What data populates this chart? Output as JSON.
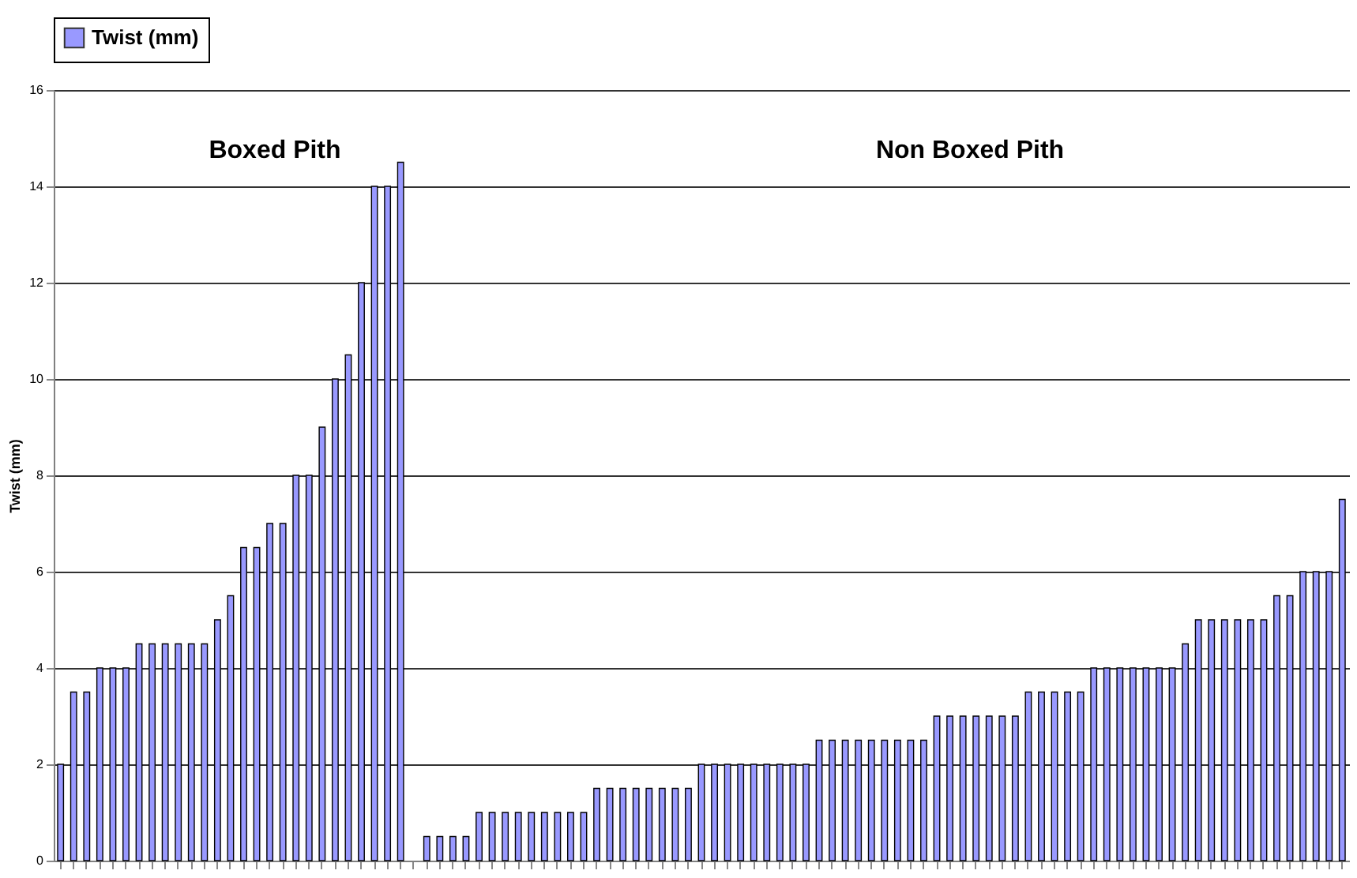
{
  "chart_data": {
    "type": "bar",
    "ylabel": "Twist (mm)",
    "categories": [
      null,
      null,
      null,
      null,
      null,
      null,
      null,
      null,
      null,
      null,
      null,
      null,
      null,
      null,
      null,
      null,
      null,
      null,
      null,
      null,
      null,
      null,
      null,
      null,
      null,
      null,
      null,
      null,
      null,
      null,
      null,
      null,
      null,
      null,
      null,
      null,
      null,
      null,
      null,
      null,
      null,
      null,
      null,
      null,
      null,
      null,
      null,
      null,
      null,
      null,
      null,
      null,
      null,
      null,
      null,
      null,
      null,
      null,
      null,
      null,
      null,
      null,
      null,
      null,
      null,
      null,
      null,
      null,
      null,
      null,
      null,
      null,
      null,
      null,
      null,
      null,
      null,
      null,
      null,
      null,
      null,
      null,
      null,
      null,
      null,
      null,
      null,
      null,
      null,
      null,
      null,
      null,
      null,
      null,
      null,
      null,
      null,
      null,
      null
    ],
    "series": [
      {
        "name": "Twist (mm)",
        "color": "#9999ff",
        "values": [
          2,
          3.5,
          3.5,
          4,
          4,
          4,
          4.5,
          4.5,
          4.5,
          4.5,
          4.5,
          4.5,
          5,
          5.5,
          6.5,
          6.5,
          7,
          7,
          8,
          8,
          9,
          10,
          10.5,
          12,
          14,
          14,
          14.5,
          null,
          0.5,
          0.5,
          0.5,
          0.5,
          1,
          1,
          1,
          1,
          1,
          1,
          1,
          1,
          1,
          1.5,
          1.5,
          1.5,
          1.5,
          1.5,
          1.5,
          1.5,
          1.5,
          2,
          2,
          2,
          2,
          2,
          2,
          2,
          2,
          2,
          2.5,
          2.5,
          2.5,
          2.5,
          2.5,
          2.5,
          2.5,
          2.5,
          2.5,
          3,
          3,
          3,
          3,
          3,
          3,
          3,
          3.5,
          3.5,
          3.5,
          3.5,
          3.5,
          4,
          4,
          4,
          4,
          4,
          4,
          4,
          4.5,
          5,
          5,
          5,
          5,
          5,
          5,
          5.5,
          5.5,
          6,
          6,
          6,
          7.5
        ]
      }
    ],
    "annotations": [
      "Boxed Pith",
      "Non Boxed Pith"
    ],
    "ylim": [
      0,
      16
    ],
    "yticks": [
      0,
      2,
      4,
      6,
      8,
      10,
      12,
      14,
      16
    ],
    "grid": "y",
    "legend": "top",
    "tick_labels": "y"
  }
}
